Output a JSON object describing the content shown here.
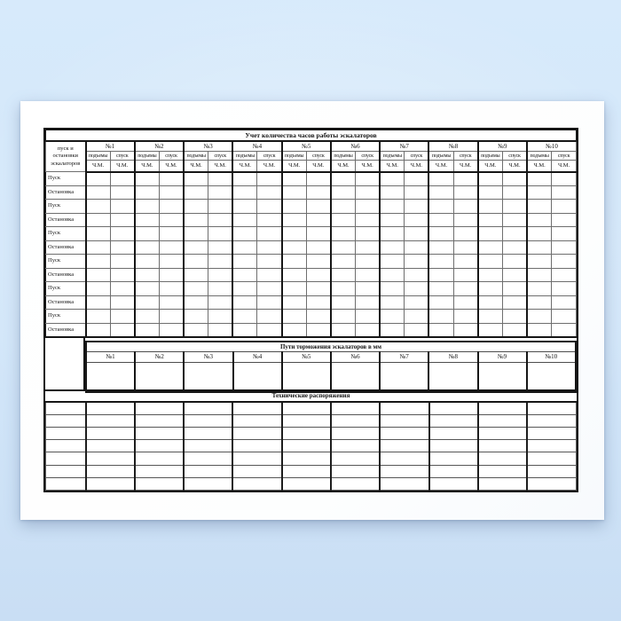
{
  "backdrop": {
    "top_color": "#d7eafb",
    "edge_color": "#c9def4"
  },
  "paper_color": "#ffffff",
  "line_color": "#161616",
  "hours_section": {
    "title": "Учет количества часов работы эскалаторов",
    "row_header": "пуск и остановки эскалаторов",
    "columns": [
      "№1",
      "№2",
      "№3",
      "№4",
      "№5",
      "№6",
      "№7",
      "№8",
      "№9",
      "№10"
    ],
    "direction_up": "подъемы",
    "direction_down": "спуск",
    "unit_label": "Ч.М.",
    "row_labels": [
      "Пуск",
      "Остановка",
      "Пуск",
      "Остановка",
      "Пуск",
      "Остановка",
      "Пуск",
      "Остановка",
      "Пуск",
      "Остановка",
      "Пуск",
      "Остановка"
    ]
  },
  "braking_section": {
    "title": "Пути торможения эскалаторов в мм",
    "columns": [
      "№1",
      "№2",
      "№3",
      "№4",
      "№5",
      "№6",
      "№7",
      "№8",
      "№9",
      "№10"
    ]
  },
  "orders_section": {
    "title": "Технические распоряжения"
  }
}
